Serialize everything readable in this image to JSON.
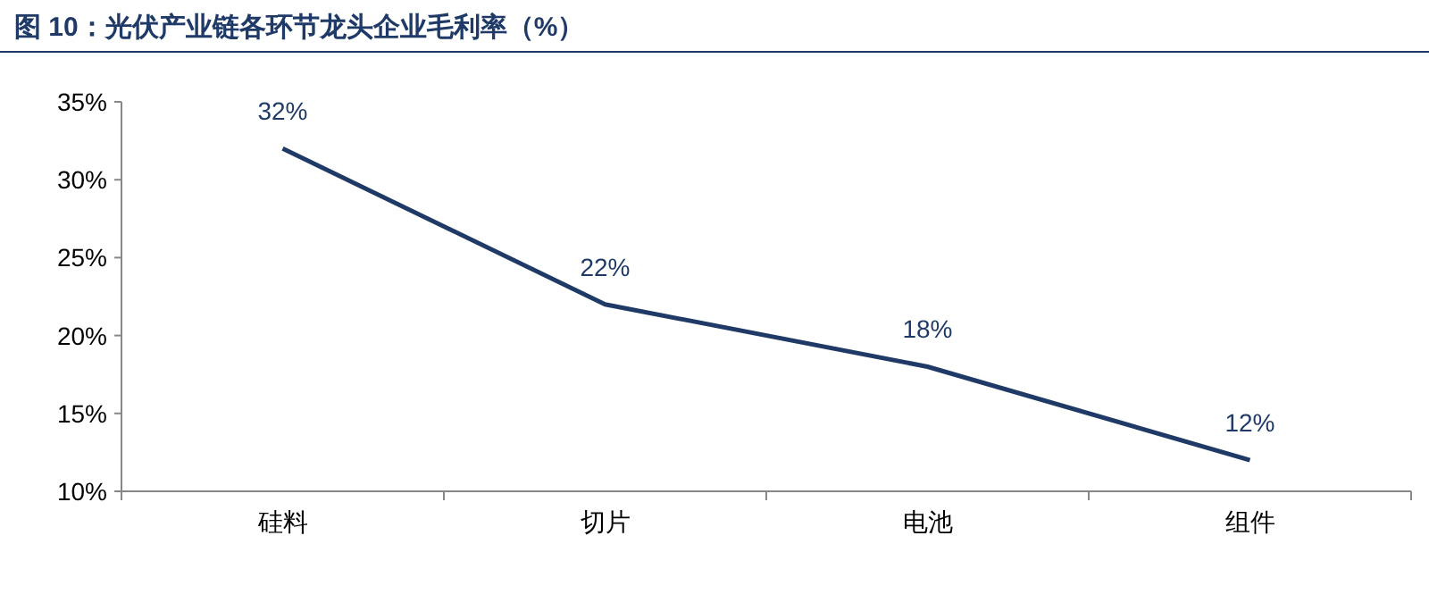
{
  "chart_data": {
    "type": "line",
    "title": "图 10：光伏产业链各环节龙头企业毛利率（%）",
    "categories": [
      "硅料",
      "切片",
      "电池",
      "组件"
    ],
    "series": [
      {
        "color": "#1f3a66",
        "values": [
          32,
          22,
          18,
          12
        ],
        "value_labels": [
          "32%",
          "22%",
          "18%",
          "12%"
        ]
      }
    ],
    "ylim": [
      10,
      35
    ],
    "yticks": [
      {
        "value": 10,
        "label": "10%"
      },
      {
        "value": 15,
        "label": "15%"
      },
      {
        "value": 20,
        "label": "20%"
      },
      {
        "value": 25,
        "label": "25%"
      },
      {
        "value": 30,
        "label": "30%"
      },
      {
        "value": 35,
        "label": "35%"
      }
    ]
  }
}
